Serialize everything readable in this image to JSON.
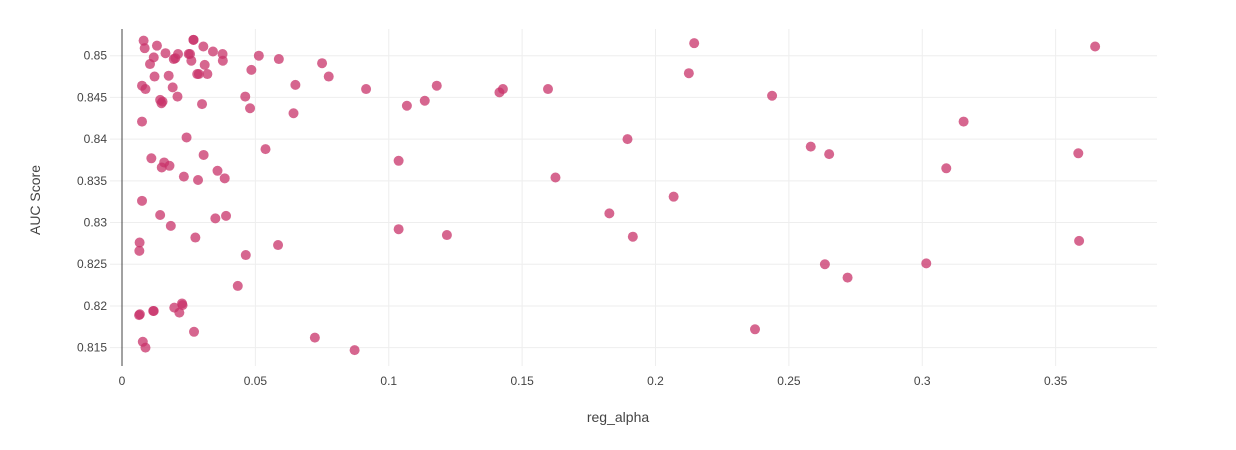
{
  "chart_data": {
    "type": "scatter",
    "title": "",
    "xlabel": "reg_alpha",
    "ylabel": "AUC Score",
    "xlim": [
      -0.0045,
      0.388
    ],
    "ylim": [
      0.8128,
      0.8532
    ],
    "xticks": [
      0,
      0.05,
      0.1,
      0.15,
      0.2,
      0.25,
      0.3,
      0.35
    ],
    "xtick_labels": [
      "0",
      "0.05",
      "0.1",
      "0.15",
      "0.2",
      "0.25",
      "0.3",
      "0.35"
    ],
    "yticks": [
      0.815,
      0.82,
      0.825,
      0.83,
      0.835,
      0.84,
      0.845,
      0.85
    ],
    "ytick_labels": [
      "0.815",
      "0.82",
      "0.825",
      "0.83",
      "0.835",
      "0.84",
      "0.845",
      "0.85"
    ],
    "grid": true,
    "marker_color": "#c8336a",
    "marker_opacity": 0.75,
    "series": [
      {
        "x": [
          0.0081,
          0.0085,
          0.0075,
          0.0075,
          0.0075,
          0.0088,
          0.0067,
          0.0065,
          0.0066,
          0.0078,
          0.0088,
          0.0105,
          0.0119,
          0.0131,
          0.0122,
          0.011,
          0.0119,
          0.0143,
          0.0152,
          0.0148,
          0.0163,
          0.0158,
          0.0149,
          0.0143,
          0.0175,
          0.0178,
          0.0183,
          0.019,
          0.0196,
          0.02,
          0.0208,
          0.0215,
          0.0227,
          0.0232,
          0.0242,
          0.0255,
          0.0268,
          0.026,
          0.025,
          0.0288,
          0.0305,
          0.03,
          0.0285,
          0.031,
          0.0306,
          0.032,
          0.0341,
          0.0377,
          0.0378,
          0.035,
          0.0358,
          0.039,
          0.0385,
          0.027,
          0.0275,
          0.0282,
          0.021,
          0.0225,
          0.0194,
          0.0117,
          0.0268,
          0.0064,
          0.0434,
          0.0462,
          0.048,
          0.0485,
          0.0464,
          0.0513,
          0.0538,
          0.0585,
          0.0643,
          0.065,
          0.0588,
          0.0723,
          0.075,
          0.0775,
          0.0872,
          0.0915,
          0.1037,
          0.1037,
          0.1068,
          0.1135,
          0.118,
          0.1218,
          0.1415,
          0.1428,
          0.1597,
          0.1625,
          0.1827,
          0.1895,
          0.1915,
          0.2068,
          0.2125,
          0.2145,
          0.2373,
          0.2437,
          0.2582,
          0.2635,
          0.2651,
          0.272,
          0.3015,
          0.309,
          0.3155,
          0.3585,
          0.3588,
          0.3648
        ],
        "y": [
          0.8518,
          0.8509,
          0.8464,
          0.8421,
          0.8326,
          0.815,
          0.819,
          0.8266,
          0.8276,
          0.8157,
          0.846,
          0.849,
          0.8498,
          0.8512,
          0.8475,
          0.8377,
          0.8194,
          0.8447,
          0.8445,
          0.8443,
          0.8503,
          0.8372,
          0.8366,
          0.8309,
          0.8476,
          0.8368,
          0.8296,
          0.8462,
          0.8198,
          0.8497,
          0.8451,
          0.8192,
          0.8201,
          0.8355,
          0.8402,
          0.8502,
          0.8519,
          0.8494,
          0.8502,
          0.8478,
          0.8511,
          0.8442,
          0.8351,
          0.8489,
          0.8381,
          0.8478,
          0.8505,
          0.8502,
          0.8494,
          0.8305,
          0.8362,
          0.8308,
          0.8353,
          0.8169,
          0.8282,
          0.8478,
          0.8502,
          0.8203,
          0.8496,
          0.8194,
          0.8519,
          0.8189,
          0.8224,
          0.8451,
          0.8437,
          0.8483,
          0.8261,
          0.85,
          0.8388,
          0.8273,
          0.8431,
          0.8465,
          0.8496,
          0.8162,
          0.8491,
          0.8475,
          0.8147,
          0.846,
          0.8374,
          0.8292,
          0.844,
          0.8446,
          0.8464,
          0.8285,
          0.8456,
          0.846,
          0.846,
          0.8354,
          0.8311,
          0.84,
          0.8283,
          0.8331,
          0.8479,
          0.8515,
          0.8172,
          0.8452,
          0.8391,
          0.825,
          0.8382,
          0.8234,
          0.8251,
          0.8365,
          0.8421,
          0.8383,
          0.8278,
          0.8511
        ]
      }
    ]
  }
}
